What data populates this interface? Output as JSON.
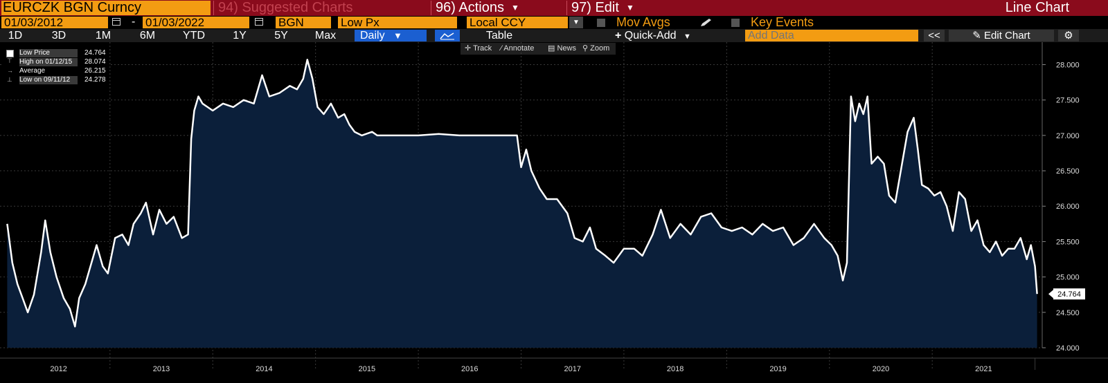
{
  "header": {
    "ticker": "EURCZK BGN Curncy",
    "menu_suggested": "94) Suggested Charts",
    "menu_actions": "96) Actions",
    "menu_edit": "97) Edit",
    "chart_title": "Line Chart"
  },
  "controls": {
    "start_date": "01/03/2012",
    "end_date": "01/03/2022",
    "date_sep": "-",
    "source": "BGN",
    "field": "Low Px",
    "currency": "Local CCY",
    "mov_avgs": "Mov Avgs",
    "key_events": "Key Events"
  },
  "timeframes": [
    "1D",
    "3D",
    "1M",
    "6M",
    "YTD",
    "1Y",
    "5Y",
    "Max"
  ],
  "toolbar": {
    "periodicity": "Daily",
    "table": "Table",
    "quick_add": "Quick-Add",
    "add_data_placeholder": "Add Data",
    "collapse": "<<",
    "edit_chart": "Edit Chart"
  },
  "tools": [
    "Track",
    "Annotate",
    "News",
    "Zoom"
  ],
  "legend": {
    "rows": [
      {
        "label": "Low Price",
        "value": "24.764"
      },
      {
        "label": "High on 01/12/15",
        "value": "28.074"
      },
      {
        "label": "Average",
        "value": "26.215"
      },
      {
        "label": "Low on 09/11/12",
        "value": "24.278"
      }
    ]
  },
  "colors": {
    "brand": "#8a0b1c",
    "accent": "#f39c12",
    "selected": "#1b5fd1",
    "area_fill": "#0b1f3a",
    "line": "#ffffff"
  },
  "chart_data": {
    "type": "area",
    "title": "",
    "series": [
      {
        "name": "Low Price",
        "points": [
          [
            2012.0,
            25.75
          ],
          [
            2012.05,
            25.2
          ],
          [
            2012.1,
            24.9
          ],
          [
            2012.15,
            24.7
          ],
          [
            2012.2,
            24.5
          ],
          [
            2012.26,
            24.75
          ],
          [
            2012.33,
            25.35
          ],
          [
            2012.37,
            25.8
          ],
          [
            2012.42,
            25.35
          ],
          [
            2012.48,
            25.0
          ],
          [
            2012.55,
            24.7
          ],
          [
            2012.61,
            24.55
          ],
          [
            2012.66,
            24.3
          ],
          [
            2012.7,
            24.7
          ],
          [
            2012.76,
            24.9
          ],
          [
            2012.82,
            25.2
          ],
          [
            2012.87,
            25.45
          ],
          [
            2012.93,
            25.15
          ],
          [
            2012.98,
            25.05
          ],
          [
            2013.05,
            25.55
          ],
          [
            2013.12,
            25.6
          ],
          [
            2013.18,
            25.45
          ],
          [
            2013.23,
            25.75
          ],
          [
            2013.3,
            25.9
          ],
          [
            2013.35,
            26.05
          ],
          [
            2013.42,
            25.6
          ],
          [
            2013.48,
            25.95
          ],
          [
            2013.55,
            25.75
          ],
          [
            2013.62,
            25.85
          ],
          [
            2013.7,
            25.55
          ],
          [
            2013.76,
            25.6
          ],
          [
            2013.79,
            26.95
          ],
          [
            2013.82,
            27.35
          ],
          [
            2013.86,
            27.55
          ],
          [
            2013.9,
            27.45
          ],
          [
            2013.95,
            27.4
          ],
          [
            2014.0,
            27.35
          ],
          [
            2014.1,
            27.45
          ],
          [
            2014.2,
            27.4
          ],
          [
            2014.3,
            27.5
          ],
          [
            2014.4,
            27.45
          ],
          [
            2014.48,
            27.85
          ],
          [
            2014.55,
            27.55
          ],
          [
            2014.65,
            27.6
          ],
          [
            2014.75,
            27.7
          ],
          [
            2014.82,
            27.65
          ],
          [
            2014.88,
            27.8
          ],
          [
            2014.92,
            28.07
          ],
          [
            2014.97,
            27.8
          ],
          [
            2015.02,
            27.4
          ],
          [
            2015.08,
            27.3
          ],
          [
            2015.15,
            27.45
          ],
          [
            2015.22,
            27.25
          ],
          [
            2015.28,
            27.3
          ],
          [
            2015.33,
            27.15
          ],
          [
            2015.38,
            27.05
          ],
          [
            2015.45,
            27.0
          ],
          [
            2015.55,
            27.05
          ],
          [
            2015.6,
            27.0
          ],
          [
            2015.7,
            27.0
          ],
          [
            2015.85,
            27.0
          ],
          [
            2016.0,
            27.0
          ],
          [
            2016.2,
            27.02
          ],
          [
            2016.4,
            27.0
          ],
          [
            2016.6,
            27.0
          ],
          [
            2016.8,
            27.0
          ],
          [
            2016.96,
            27.0
          ],
          [
            2017.0,
            26.55
          ],
          [
            2017.05,
            26.8
          ],
          [
            2017.1,
            26.5
          ],
          [
            2017.18,
            26.25
          ],
          [
            2017.25,
            26.1
          ],
          [
            2017.35,
            26.1
          ],
          [
            2017.45,
            25.9
          ],
          [
            2017.52,
            25.55
          ],
          [
            2017.6,
            25.5
          ],
          [
            2017.67,
            25.7
          ],
          [
            2017.73,
            25.4
          ],
          [
            2017.82,
            25.3
          ],
          [
            2017.9,
            25.2
          ],
          [
            2018.0,
            25.4
          ],
          [
            2018.1,
            25.4
          ],
          [
            2018.18,
            25.3
          ],
          [
            2018.28,
            25.6
          ],
          [
            2018.36,
            25.95
          ],
          [
            2018.45,
            25.55
          ],
          [
            2018.55,
            25.75
          ],
          [
            2018.65,
            25.6
          ],
          [
            2018.75,
            25.85
          ],
          [
            2018.85,
            25.9
          ],
          [
            2018.95,
            25.7
          ],
          [
            2019.05,
            25.65
          ],
          [
            2019.15,
            25.7
          ],
          [
            2019.25,
            25.6
          ],
          [
            2019.35,
            25.75
          ],
          [
            2019.45,
            25.65
          ],
          [
            2019.55,
            25.7
          ],
          [
            2019.65,
            25.45
          ],
          [
            2019.75,
            25.55
          ],
          [
            2019.85,
            25.75
          ],
          [
            2019.95,
            25.55
          ],
          [
            2020.02,
            25.45
          ],
          [
            2020.08,
            25.3
          ],
          [
            2020.13,
            24.95
          ],
          [
            2020.17,
            25.2
          ],
          [
            2020.21,
            27.55
          ],
          [
            2020.25,
            27.2
          ],
          [
            2020.29,
            27.45
          ],
          [
            2020.33,
            27.3
          ],
          [
            2020.37,
            27.55
          ],
          [
            2020.41,
            26.6
          ],
          [
            2020.47,
            26.7
          ],
          [
            2020.53,
            26.6
          ],
          [
            2020.58,
            26.15
          ],
          [
            2020.64,
            26.05
          ],
          [
            2020.7,
            26.55
          ],
          [
            2020.76,
            27.05
          ],
          [
            2020.82,
            27.25
          ],
          [
            2020.86,
            26.8
          ],
          [
            2020.9,
            26.3
          ],
          [
            2020.96,
            26.25
          ],
          [
            2021.02,
            26.15
          ],
          [
            2021.08,
            26.2
          ],
          [
            2021.14,
            26.0
          ],
          [
            2021.2,
            25.65
          ],
          [
            2021.26,
            26.2
          ],
          [
            2021.32,
            26.1
          ],
          [
            2021.38,
            25.65
          ],
          [
            2021.44,
            25.8
          ],
          [
            2021.5,
            25.45
          ],
          [
            2021.56,
            25.35
          ],
          [
            2021.62,
            25.5
          ],
          [
            2021.68,
            25.3
          ],
          [
            2021.74,
            25.4
          ],
          [
            2021.8,
            25.4
          ],
          [
            2021.86,
            25.55
          ],
          [
            2021.92,
            25.25
          ],
          [
            2021.96,
            25.45
          ],
          [
            2022.0,
            25.15
          ],
          [
            2022.02,
            24.76
          ]
        ]
      }
    ],
    "x_ticks": [
      "2012",
      "2013",
      "2014",
      "2015",
      "2016",
      "2017",
      "2018",
      "2019",
      "2020",
      "2021"
    ],
    "xlim": [
      2011.93,
      2022.07
    ],
    "ylim": [
      24.0,
      28.2
    ],
    "y_ticks": [
      "24.000",
      "24.500",
      "25.000",
      "25.500",
      "26.000",
      "26.500",
      "27.000",
      "27.500",
      "28.000"
    ],
    "last_value_label": "24.764",
    "grid": true,
    "legend_position": "top-left"
  }
}
